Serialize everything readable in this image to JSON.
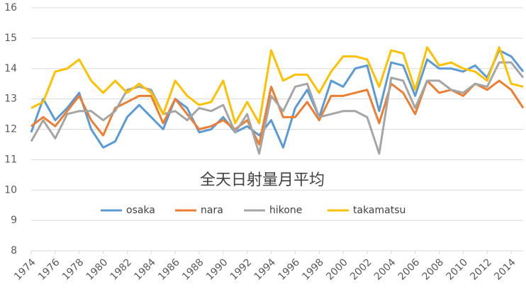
{
  "chart_data": {
    "type": "line",
    "title": "全天日射量月平均",
    "x": [
      1974,
      1975,
      1976,
      1977,
      1978,
      1979,
      1980,
      1981,
      1982,
      1983,
      1984,
      1985,
      1986,
      1987,
      1988,
      1989,
      1990,
      1991,
      1992,
      1993,
      1994,
      1995,
      1996,
      1997,
      1998,
      1999,
      2000,
      2001,
      2002,
      2003,
      2004,
      2005,
      2006,
      2007,
      2008,
      2009,
      2010,
      2011,
      2012,
      2013,
      2014,
      2015
    ],
    "xlim": [
      1974,
      2015
    ],
    "xticks": [
      1974,
      1976,
      1978,
      1980,
      1982,
      1984,
      1986,
      1988,
      1990,
      1992,
      1994,
      1996,
      1998,
      2000,
      2002,
      2004,
      2006,
      2008,
      2010,
      2012,
      2014
    ],
    "ylim": [
      8,
      16
    ],
    "yticks": [
      8,
      9,
      10,
      11,
      12,
      13,
      14,
      15,
      16
    ],
    "grid": true,
    "series": [
      {
        "name": "osaka",
        "color": "#5b9bd5",
        "values": [
          11.9,
          13.0,
          12.3,
          12.7,
          13.2,
          12.0,
          11.4,
          11.6,
          12.4,
          12.8,
          12.4,
          12.0,
          13.0,
          12.7,
          11.9,
          12.0,
          12.4,
          11.9,
          12.1,
          11.8,
          12.3,
          11.4,
          12.7,
          13.3,
          12.4,
          13.6,
          13.4,
          14.0,
          14.1,
          12.6,
          14.2,
          14.1,
          13.1,
          14.3,
          14.0,
          14.0,
          13.9,
          14.1,
          13.7,
          14.6,
          14.4,
          13.9
        ]
      },
      {
        "name": "nara",
        "color": "#ed7d31",
        "values": [
          12.1,
          12.4,
          12.1,
          12.6,
          13.1,
          12.3,
          11.8,
          12.7,
          12.9,
          13.1,
          13.1,
          12.2,
          13.0,
          12.5,
          12.0,
          12.1,
          12.3,
          12.0,
          12.3,
          11.5,
          13.4,
          12.4,
          12.4,
          12.9,
          12.3,
          13.1,
          13.1,
          13.2,
          13.3,
          12.2,
          13.5,
          13.2,
          12.5,
          13.6,
          13.2,
          13.3,
          13.1,
          13.5,
          13.3,
          13.6,
          13.3,
          12.7
        ]
      },
      {
        "name": "hikone",
        "color": "#a5a5a5",
        "values": [
          11.6,
          12.3,
          11.7,
          12.5,
          12.6,
          12.6,
          12.3,
          12.6,
          13.3,
          13.4,
          13.3,
          12.5,
          12.6,
          12.3,
          12.7,
          12.6,
          12.8,
          11.9,
          12.5,
          11.2,
          13.1,
          12.6,
          13.4,
          13.5,
          12.4,
          12.5,
          12.6,
          12.6,
          12.4,
          11.2,
          13.7,
          13.6,
          12.7,
          13.6,
          13.6,
          13.3,
          13.2,
          13.5,
          13.4,
          14.2,
          14.2,
          13.7
        ]
      },
      {
        "name": "takamatsu",
        "color": "#ffc000",
        "values": [
          12.7,
          12.9,
          13.9,
          14.0,
          14.3,
          13.6,
          13.2,
          13.6,
          13.2,
          13.5,
          13.2,
          12.5,
          13.6,
          13.1,
          12.8,
          12.9,
          13.6,
          12.2,
          12.9,
          12.2,
          14.6,
          13.6,
          13.8,
          13.8,
          13.2,
          13.9,
          14.4,
          14.4,
          14.3,
          13.4,
          14.6,
          14.5,
          13.3,
          14.7,
          14.1,
          14.2,
          14.0,
          13.9,
          13.6,
          14.7,
          13.5,
          13.4
        ]
      }
    ]
  }
}
